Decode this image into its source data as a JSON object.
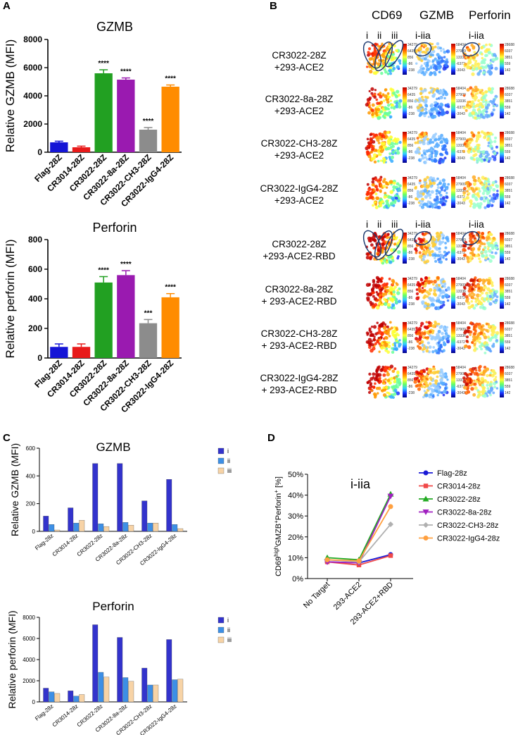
{
  "panels": {
    "A": "A",
    "B": "B",
    "C": "C",
    "D": "D"
  },
  "colors": {
    "bars_A": [
      "#1515d6",
      "#e81a1a",
      "#22a022",
      "#9a1ab0",
      "#8c8c8c",
      "#ff8c00"
    ],
    "bars_C": [
      "#3333cc",
      "#3d8fe6",
      "#f7d3a6"
    ],
    "lines_D": [
      "#1a1ad6",
      "#f04848",
      "#22aa22",
      "#a020c0",
      "#b0b0b0",
      "#ffa040"
    ]
  },
  "chart_data": [
    {
      "id": "A-top",
      "type": "bar",
      "title": "GZMB",
      "ylabel": "Relative GZMB (MFI)",
      "categories": [
        "Flag-28Z",
        "CR3014-28Z",
        "CR3022-28Z",
        "CR3022-8a-28Z",
        "CR3022-CH3-28Z",
        "CR3022-IgG4-28Z"
      ],
      "values": [
        700,
        350,
        5600,
        5150,
        1600,
        4650
      ],
      "errors": [
        80,
        80,
        250,
        120,
        150,
        120
      ],
      "significance": [
        "",
        "",
        "****",
        "****",
        "****",
        "****"
      ],
      "ylim": [
        0,
        8000
      ],
      "yticks": [
        "0",
        "2000",
        "4000",
        "6000",
        "8000"
      ]
    },
    {
      "id": "A-bottom",
      "type": "bar",
      "title": "Perforin",
      "ylabel": "Relative perforin (MFI)",
      "categories": [
        "Flag-28Z",
        "CR3014-28Z",
        "CR3022-28Z",
        "CR3022-8a-28Z",
        "CR3022-CH3-28Z",
        "CR3022-IgG4-28Z"
      ],
      "values": [
        75,
        75,
        510,
        560,
        235,
        410
      ],
      "errors": [
        20,
        20,
        40,
        30,
        25,
        25
      ],
      "significance": [
        "",
        "",
        "****",
        "****",
        "***",
        "****"
      ],
      "ylim": [
        0,
        800
      ],
      "yticks": [
        "0",
        "200",
        "400",
        "600",
        "800"
      ]
    },
    {
      "id": "C-top",
      "type": "bar",
      "title": "GZMB",
      "ylabel": "Relative GZMB (MFI)",
      "categories": [
        "Flag-28z",
        "CR3014-28z",
        "CR3022-28z",
        "CR3022-8a-28z",
        "CR3022-CH3-28z",
        "CR3022-IgG4-28z"
      ],
      "series": [
        {
          "name": "i",
          "values": [
            110,
            170,
            490,
            490,
            220,
            375
          ]
        },
        {
          "name": "ii",
          "values": [
            50,
            60,
            55,
            65,
            60,
            50
          ]
        },
        {
          "name": "iii",
          "values": [
            10,
            80,
            35,
            45,
            60,
            20
          ]
        }
      ],
      "ylim": [
        0,
        600
      ],
      "yticks": [
        "0",
        "200",
        "400",
        "600"
      ]
    },
    {
      "id": "C-bottom",
      "type": "bar",
      "title": "Perforin",
      "ylabel": "Relative perforin (MFI)",
      "categories": [
        "Flag-28z",
        "CR3014-28z",
        "CR3022-28z",
        "CR3022-8a-28z",
        "CR3022-CH3-28z",
        "CR3022-IgG4-28z"
      ],
      "series": [
        {
          "name": "i",
          "values": [
            1300,
            1050,
            7300,
            6100,
            3200,
            5900
          ]
        },
        {
          "name": "ii",
          "values": [
            950,
            550,
            2800,
            2300,
            1600,
            2100
          ]
        },
        {
          "name": "iii",
          "values": [
            800,
            700,
            2350,
            1950,
            1600,
            2150
          ]
        }
      ],
      "ylim": [
        0,
        8000
      ],
      "yticks": [
        "0",
        "2000",
        "4000",
        "6000",
        "8000"
      ]
    },
    {
      "id": "D",
      "type": "line",
      "title": "i-iia",
      "ylabel_parts": {
        "a": "CD69",
        "b": "high",
        "c": "GMZB",
        "d": "+",
        "e": "Perforin",
        "f": "+",
        "g": " [%]"
      },
      "x": [
        "No Target",
        "293-ACE2",
        "293-ACE2+RBD"
      ],
      "series": [
        {
          "name": "Flag-28z",
          "values": [
            8,
            7.5,
            11.5
          ],
          "marker": "circle"
        },
        {
          "name": "CR3014-28z",
          "values": [
            8,
            6.5,
            11
          ],
          "marker": "square"
        },
        {
          "name": "CR3022-28z",
          "values": [
            10,
            9,
            40.5
          ],
          "marker": "triangle"
        },
        {
          "name": "CR3022-8a-28z",
          "values": [
            8,
            7.5,
            39.5
          ],
          "marker": "triangle-down"
        },
        {
          "name": "CR3022-CH3-28z",
          "values": [
            9,
            8,
            26
          ],
          "marker": "diamond"
        },
        {
          "name": "CR3022-IgG4-28z",
          "values": [
            9,
            8.5,
            34.5
          ],
          "marker": "circle"
        }
      ],
      "ylim": [
        0,
        50
      ],
      "yticks": [
        "0%",
        "10%",
        "20%",
        "30%",
        "40%",
        "50%"
      ]
    }
  ],
  "panel_B": {
    "columns": [
      "CD69",
      "GZMB",
      "Perforin"
    ],
    "rows": [
      {
        "l1": "CR3022-28Z",
        "l2": "+293-ACE2"
      },
      {
        "l1": "CR3022-8a-28Z",
        "l2": "+293-ACE2"
      },
      {
        "l1": "CR3022-CH3-28Z",
        "l2": "+293-ACE2"
      },
      {
        "l1": "CR3022-IgG4-28Z",
        "l2": "+293-ACE2"
      },
      {
        "l1": "CR3022-28Z",
        "l2": "+293-ACE2-RBD"
      },
      {
        "l1": "CR3022-8a-28Z",
        "l2": "+ 293-ACE2-RBD"
      },
      {
        "l1": "CR3022-CH3-28Z",
        "l2": "+ 293-ACE2-RBD"
      },
      {
        "l1": "CR3022-IgG4-28Z",
        "l2": "+ 293-ACE2-RBD"
      }
    ],
    "region_labels": {
      "i": "i",
      "ii": "ii",
      "iii": "iii",
      "iia": "i-iia"
    },
    "colorbar_ticks": {
      "cd69": [
        "34279",
        "6435",
        "856",
        "-86",
        "-238"
      ],
      "gzmb": [
        "58404",
        "27909",
        "13336",
        "-6372",
        "-3043"
      ],
      "perforin": [
        "28688",
        "6037",
        "3851",
        "559",
        "142"
      ]
    }
  }
}
